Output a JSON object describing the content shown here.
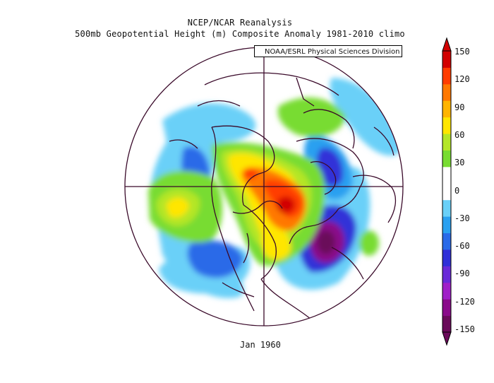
{
  "title": "NCEP/NCAR Reanalysis",
  "subtitle": "500mb Geopotential Height (m) Composite Anomaly 1981-2010 climo",
  "credit": "NOAA/ESRL Physical Sciences Division",
  "date_label": "Jan 1960",
  "colorbar": {
    "ticks": [
      "150",
      "120",
      "90",
      "60",
      "30",
      "0",
      "-30",
      "-60",
      "-90",
      "-120",
      "-150"
    ],
    "colors": [
      "#6a0a5a",
      "#8a0a8a",
      "#a020c8",
      "#6a2ad8",
      "#3030d8",
      "#2a6ae8",
      "#2aa0f0",
      "#6ad0f8",
      "#ffffff",
      "#ffffff",
      "#78dc32",
      "#b4e628",
      "#ffe600",
      "#ffb400",
      "#ff7800",
      "#ff3c00",
      "#d20000"
    ]
  },
  "map": {
    "projection": "north-polar-stereographic",
    "blobs": [
      {
        "value": 150,
        "color": "#d20000"
      },
      {
        "value": 120,
        "color": "#ff6a00"
      },
      {
        "value": 90,
        "color": "#ffe600"
      },
      {
        "value": 60,
        "color": "#b4e628"
      },
      {
        "value": -150,
        "color": "#6a0a5a"
      },
      {
        "value": -90,
        "color": "#8a0a8a"
      },
      {
        "value": -60,
        "color": "#3030d8"
      },
      {
        "value": -30,
        "color": "#2aa0f0"
      }
    ]
  }
}
